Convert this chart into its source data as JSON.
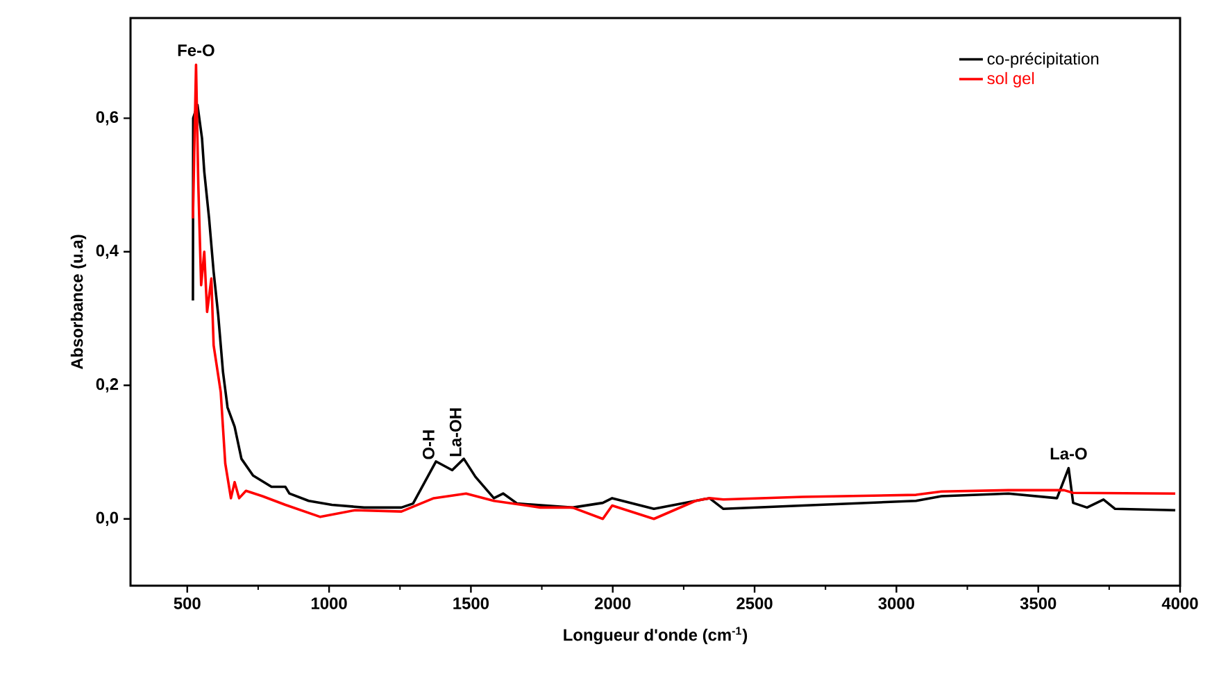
{
  "chart_data": {
    "type": "line",
    "xlabel": "Longueur d'onde (cm$^{-1}$)",
    "ylabel": "Absorbance (u.a)",
    "xlim": [
      300,
      4000
    ],
    "ylim": [
      -0.1,
      0.75
    ],
    "xticks": [
      500,
      1000,
      1500,
      2000,
      2500,
      3000,
      3500,
      4000
    ],
    "yticks": [
      {
        "value": 0,
        "label": "0,0"
      },
      {
        "value": 0.2,
        "label": "0,2"
      },
      {
        "value": 0.4,
        "label": "0,4"
      },
      {
        "value": 0.6,
        "label": "0,6"
      }
    ],
    "legend": "top right",
    "grid": false,
    "marker": "none",
    "line_style": "solid",
    "series": [
      {
        "name": "co-précipitation",
        "color": "#000000",
        "x": [
          520,
          521,
          536,
          552,
          560,
          577,
          593,
          609,
          626,
          642,
          667,
          691,
          732,
          797,
          846,
          860,
          928,
          1010,
          1124,
          1255,
          1296,
          1337,
          1377,
          1434,
          1475,
          1516,
          1581,
          1614,
          1663,
          1858,
          1965,
          1998,
          2145,
          2292,
          2341,
          2390,
          2669,
          3069,
          3159,
          3395,
          3566,
          3607,
          3623,
          3672,
          3730,
          3771,
          3983
        ],
        "values": [
          0.327,
          0.6,
          0.62,
          0.57,
          0.52,
          0.45,
          0.37,
          0.306,
          0.22,
          0.167,
          0.138,
          0.09,
          0.065,
          0.048,
          0.048,
          0.038,
          0.027,
          0.021,
          0.017,
          0.017,
          0.023,
          0.055,
          0.086,
          0.073,
          0.09,
          0.063,
          0.031,
          0.038,
          0.023,
          0.017,
          0.024,
          0.031,
          0.015,
          0.027,
          0.031,
          0.015,
          0.02,
          0.027,
          0.034,
          0.038,
          0.031,
          0.076,
          0.024,
          0.017,
          0.029,
          0.015,
          0.013
        ]
      },
      {
        "name": "sol gel",
        "color": "#ff0000",
        "x": [
          520,
          531,
          539,
          549,
          560,
          570,
          585,
          593,
          618,
          634,
          654,
          667,
          683,
          707,
          765,
          846,
          969,
          1092,
          1255,
          1369,
          1483,
          1581,
          1745,
          1858,
          1965,
          1998,
          2145,
          2292,
          2341,
          2390,
          2669,
          3069,
          3159,
          3395,
          3591,
          3623,
          3983
        ],
        "values": [
          0.45,
          0.68,
          0.5,
          0.35,
          0.4,
          0.31,
          0.36,
          0.26,
          0.19,
          0.083,
          0.031,
          0.055,
          0.031,
          0.042,
          0.034,
          0.021,
          0.003,
          0.013,
          0.011,
          0.031,
          0.038,
          0.027,
          0.017,
          0.017,
          0.0,
          0.02,
          0.0,
          0.027,
          0.031,
          0.029,
          0.033,
          0.036,
          0.041,
          0.043,
          0.043,
          0.039,
          0.038
        ]
      }
    ],
    "annotations": [
      {
        "text": "Fe-O",
        "x": 531,
        "y": 0.68
      },
      {
        "text": "O-H",
        "x": 1380,
        "y": 0.086
      },
      {
        "text": "La-OH",
        "x": 1475,
        "y": 0.09
      },
      {
        "text": "La-O",
        "x": 3607,
        "y": 0.076
      }
    ]
  }
}
